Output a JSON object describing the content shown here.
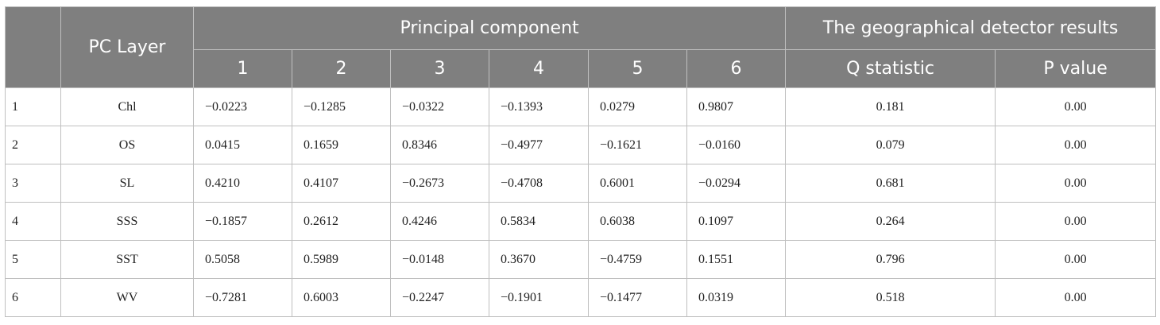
{
  "table": {
    "header": {
      "pc_layer": "PC Layer",
      "principal_component": "Principal component",
      "detector": "The geographical detector results",
      "columns": [
        "1",
        "2",
        "3",
        "4",
        "5",
        "6",
        "Q statistic",
        "P value"
      ]
    },
    "rows": [
      [
        "1",
        "Chl",
        "−0.0223",
        "−0.1285",
        "−0.0322",
        "−0.1393",
        "0.0279",
        "0.9807",
        "0.181",
        "0.00"
      ],
      [
        "2",
        "OS",
        "0.0415",
        "0.1659",
        "0.8346",
        "−0.4977",
        "−0.1621",
        "−0.0160",
        "0.079",
        "0.00"
      ],
      [
        "3",
        "SL",
        "0.4210",
        "0.4107",
        "−0.2673",
        "−0.4708",
        "0.6001",
        "−0.0294",
        "0.681",
        "0.00"
      ],
      [
        "4",
        "SSS",
        "−0.1857",
        "0.2612",
        "0.4246",
        "0.5834",
        "0.6038",
        "0.1097",
        "0.264",
        "0.00"
      ],
      [
        "5",
        "SST",
        "0.5058",
        "0.5989",
        "−0.0148",
        "0.3670",
        "−0.4759",
        "0.1551",
        "0.796",
        "0.00"
      ],
      [
        "6",
        "WV",
        "−0.7281",
        "0.6003",
        "−0.2247",
        "−0.1901",
        "−0.1477",
        "0.0319",
        "0.518",
        "0.00"
      ]
    ]
  }
}
